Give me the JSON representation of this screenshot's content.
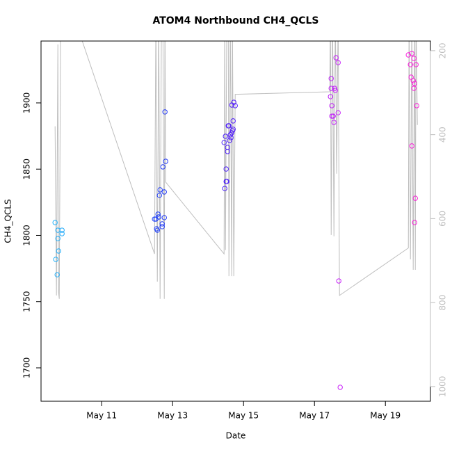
{
  "chart_data": {
    "type": "scatter",
    "title": "ATOM4 Northbound CH4_QCLS",
    "x_label": "Date",
    "y_label": "CH4_QCLS",
    "xlim": [
      9.29,
      20.27
    ],
    "xticks": [
      {
        "value": 11,
        "label": "May 11"
      },
      {
        "value": 13,
        "label": "May 13"
      },
      {
        "value": 15,
        "label": "May 15"
      },
      {
        "value": 17,
        "label": "May 17"
      },
      {
        "value": 19,
        "label": "May 19"
      }
    ],
    "ylim": [
      1674.8,
      1946.7
    ],
    "yticks": [
      1700,
      1750,
      1800,
      1850,
      1900
    ],
    "y2lim": [
      1035,
      177
    ],
    "y2ticks": [
      200,
      400,
      600,
      800,
      1000
    ],
    "y2_color": "#bebebe",
    "color_hue_range": [
      200,
      310
    ],
    "series": [
      {
        "type": "scatter",
        "x": [
          9.686,
          9.706,
          9.745,
          9.765,
          9.765,
          9.784,
          9.882,
          9.882,
          12.49,
          12.529,
          12.549,
          12.569,
          12.588,
          12.608,
          12.627,
          12.647,
          12.706,
          12.706,
          12.725,
          12.765,
          12.765,
          12.784,
          12.804,
          14.451,
          14.471,
          14.49,
          14.51,
          14.51,
          14.529,
          14.549,
          14.549,
          14.569,
          14.588,
          14.608,
          14.627,
          14.647,
          14.667,
          14.686,
          14.706,
          14.706,
          14.667,
          14.725,
          14.765,
          17.471,
          17.451,
          17.471,
          17.49,
          17.49,
          17.529,
          17.549,
          17.569,
          17.588,
          17.608,
          17.667,
          17.667,
          17.686,
          17.725,
          19.647,
          19.706,
          19.725,
          19.745,
          19.745,
          19.784,
          19.804,
          19.804,
          19.824,
          19.824,
          19.843,
          19.863,
          19.882
        ],
        "values": [
          1809.7,
          1781.9,
          1770.3,
          1797.6,
          1803.9,
          1788.2,
          1803.9,
          1801.3,
          1812.3,
          1812.3,
          1805.0,
          1803.9,
          1816.0,
          1813.9,
          1830.2,
          1834.4,
          1808.7,
          1806.6,
          1851.7,
          1832.8,
          1813.4,
          1893.2,
          1855.9,
          1870.1,
          1835.4,
          1874.8,
          1850.1,
          1840.7,
          1840.7,
          1866.4,
          1863.3,
          1882.7,
          1882.7,
          1871.7,
          1875.9,
          1873.8,
          1877.4,
          1879.0,
          1880.1,
          1886.4,
          1898.4,
          1900.5,
          1897.9,
          1918.4,
          1904.7,
          1911.0,
          1897.9,
          1890.0,
          1890.0,
          1885.3,
          1911.0,
          1909.4,
          1934.1,
          1930.4,
          1892.6,
          1765.6,
          1685.3,
          1936.2,
          1928.9,
          1919.4,
          1867.5,
          1937.3,
          1916.8,
          1933.6,
          1911.0,
          1914.7,
          1809.7,
          1828.0,
          1928.9,
          1897.9
        ]
      },
      {
        "type": "line",
        "axis": "y2",
        "color": "#bebebe",
        "x": [
          9.686,
          9.725,
          9.765,
          9.784,
          9.804,
          9.843,
          9.882,
          10.392,
          12.49,
          12.529,
          12.569,
          12.608,
          12.647,
          12.686,
          12.725,
          12.765,
          12.784,
          12.804,
          14.451,
          14.471,
          14.49,
          14.529,
          14.569,
          14.588,
          14.627,
          14.667,
          14.686,
          14.725,
          14.765,
          17.431,
          17.451,
          17.471,
          17.51,
          17.549,
          17.588,
          17.627,
          17.667,
          17.706,
          19.647,
          19.667,
          19.706,
          19.745,
          19.784,
          19.824,
          19.843,
          19.863,
          19.902
        ],
        "values": [
          380,
          783,
          185,
          775,
          791,
          145,
          145,
          162,
          684,
          112,
          750,
          112,
          791,
          112,
          112,
          791,
          112,
          513,
          684,
          112,
          675,
          112,
          112,
          737,
          112,
          737,
          112,
          737,
          304,
          298,
          112,
          639,
          112,
          642,
          112,
          493,
          112,
          783,
          670,
          112,
          697,
          112,
          722,
          112,
          722,
          112,
          377
        ]
      }
    ]
  }
}
